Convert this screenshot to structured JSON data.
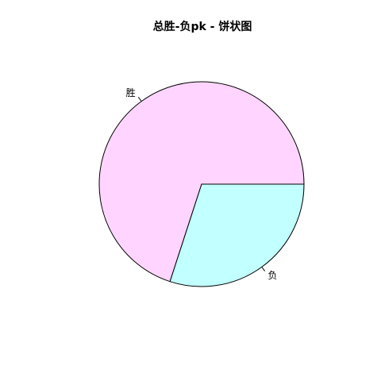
{
  "chart_data": {
    "type": "pie",
    "title": "总胜-负pk - 饼状图",
    "start_angle_deg": 0,
    "direction": "counterclockwise",
    "labels": [
      "胜",
      "负"
    ],
    "values": [
      70,
      30
    ],
    "colors": [
      "#FFD5FF",
      "#C2FFFF"
    ],
    "border_color": "#000000",
    "legend": "none",
    "label_placement": "outside with leader lines"
  }
}
